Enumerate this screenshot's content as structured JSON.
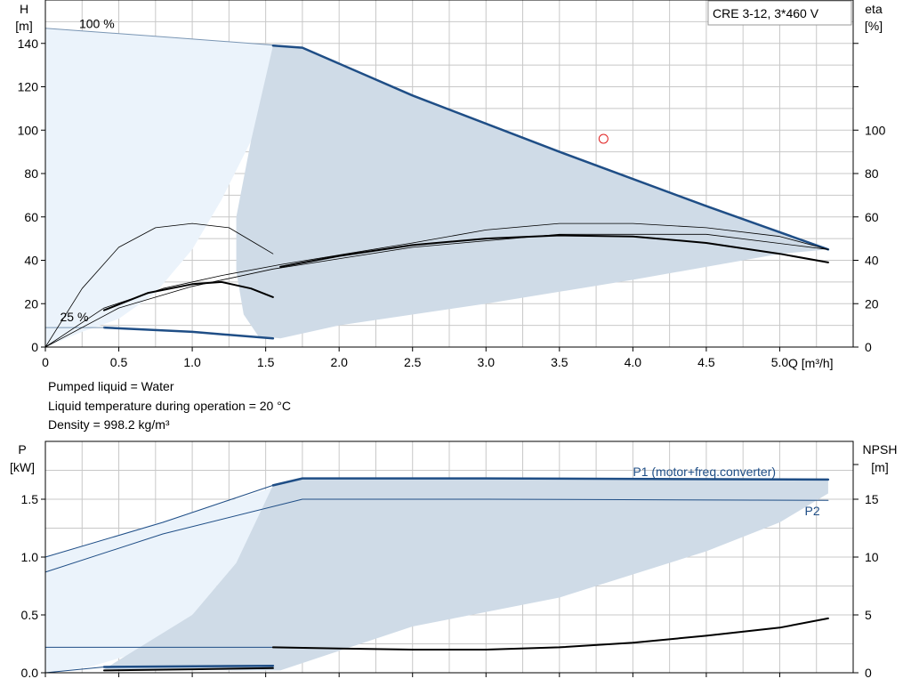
{
  "chart_data": [
    {
      "type": "line",
      "name_box": "CRE 3-12, 3*460 V",
      "y_left_label": [
        "H",
        "[m]"
      ],
      "y_right_label": [
        "eta",
        "[%]"
      ],
      "x_label": "Q [m³/h]",
      "xlim": [
        0,
        5.5
      ],
      "ylim": [
        0,
        160
      ],
      "x_ticks": [
        "0",
        "0.5",
        "1.0",
        "1.5",
        "2.0",
        "2.5",
        "3.0",
        "3.5",
        "4.0",
        "4.5",
        "5.0"
      ],
      "x_tick_values": [
        0,
        0.5,
        1.0,
        1.5,
        2.0,
        2.5,
        3.0,
        3.5,
        4.0,
        4.5,
        5.0
      ],
      "y_left_ticks": [
        "0",
        "20",
        "40",
        "60",
        "80",
        "100",
        "120",
        "140"
      ],
      "y_left_tick_values": [
        0,
        20,
        40,
        60,
        80,
        100,
        120,
        140
      ],
      "y_right_ticks": [
        "0",
        "20",
        "40",
        "60",
        "80",
        "100"
      ],
      "y_right_tick_values": [
        0,
        20,
        40,
        60,
        80,
        100
      ],
      "speed_labels": [
        {
          "text": "100 %",
          "x": 0.23,
          "y": 147
        },
        {
          "text": "25 %",
          "x": 0.1,
          "y": 12
        }
      ],
      "grid": true,
      "region_light": [
        [
          0,
          147
        ],
        [
          0.8,
          143
        ],
        [
          1.6,
          139
        ],
        [
          1.55,
          118
        ],
        [
          1.4,
          95
        ],
        [
          1.2,
          68
        ],
        [
          1.0,
          45
        ],
        [
          0.75,
          25
        ],
        [
          0.5,
          13
        ],
        [
          0.25,
          7
        ],
        [
          0,
          0
        ]
      ],
      "region_operating": [
        [
          1.55,
          139
        ],
        [
          1.75,
          138
        ],
        [
          2.5,
          116
        ],
        [
          3.5,
          90
        ],
        [
          4.5,
          65
        ],
        [
          5.33,
          45
        ],
        [
          5.0,
          43
        ],
        [
          4.0,
          31
        ],
        [
          3.0,
          20
        ],
        [
          2.0,
          10
        ],
        [
          1.6,
          4
        ],
        [
          1.45,
          5
        ],
        [
          1.35,
          15
        ],
        [
          1.3,
          35
        ],
        [
          1.3,
          60
        ],
        [
          1.4,
          95
        ],
        [
          1.55,
          139
        ]
      ],
      "series": [
        {
          "role": "max-curve-left",
          "color": "#7a96b4",
          "width": 1,
          "points": [
            [
              0,
              147
            ],
            [
              0.8,
              143
            ],
            [
              1.6,
              139
            ]
          ]
        },
        {
          "role": "max-curve",
          "color": "#1f4e86",
          "width": 2.5,
          "points": [
            [
              1.55,
              139
            ],
            [
              1.75,
              138
            ],
            [
              2.5,
              116
            ],
            [
              3.5,
              90
            ],
            [
              4.5,
              65
            ],
            [
              5.33,
              45
            ]
          ]
        },
        {
          "role": "min-curve",
          "color": "#1f4e86",
          "width": 2.5,
          "points": [
            [
              0.4,
              9
            ],
            [
              1.0,
              7
            ],
            [
              1.55,
              4
            ]
          ]
        },
        {
          "role": "min-curve-left",
          "color": "#7a96b4",
          "width": 1,
          "points": [
            [
              0,
              9
            ],
            [
              0.4,
              9
            ]
          ]
        },
        {
          "role": "eta-thin-1",
          "color": "#000000",
          "width": 0.8,
          "points": [
            [
              0,
              0
            ],
            [
              0.25,
              27
            ],
            [
              0.5,
              46
            ],
            [
              0.75,
              55
            ],
            [
              1.0,
              57
            ],
            [
              1.25,
              55
            ],
            [
              1.45,
              47
            ],
            [
              1.55,
              43
            ]
          ]
        },
        {
          "role": "eta-thin-2",
          "color": "#000000",
          "width": 0.8,
          "points": [
            [
              0,
              0
            ],
            [
              0.4,
              18
            ],
            [
              0.8,
              27
            ],
            [
              1.2,
              33
            ],
            [
              1.6,
              38
            ],
            [
              2.5,
              48
            ],
            [
              3.0,
              54
            ],
            [
              3.5,
              57
            ],
            [
              4.0,
              57
            ],
            [
              4.5,
              55
            ],
            [
              5.0,
              51
            ],
            [
              5.33,
              45
            ]
          ]
        },
        {
          "role": "eta-thin-3",
          "color": "#000000",
          "width": 0.8,
          "points": [
            [
              0,
              0
            ],
            [
              0.5,
              18
            ],
            [
              1.0,
              28
            ],
            [
              1.55,
              36
            ],
            [
              2.5,
              46
            ],
            [
              3.5,
              52
            ],
            [
              4.5,
              52
            ],
            [
              5.33,
              45
            ]
          ]
        },
        {
          "role": "eta-low",
          "color": "#000000",
          "width": 2,
          "points": [
            [
              0.4,
              17
            ],
            [
              0.7,
              25
            ],
            [
              1.0,
              29
            ],
            [
              1.2,
              30
            ],
            [
              1.4,
              27
            ],
            [
              1.55,
              23
            ]
          ]
        },
        {
          "role": "eta-main",
          "color": "#000000",
          "width": 2,
          "points": [
            [
              1.6,
              37
            ],
            [
              2.0,
              42
            ],
            [
              2.5,
              47
            ],
            [
              3.0,
              50
            ],
            [
              3.5,
              51.5
            ],
            [
              4.0,
              51
            ],
            [
              4.5,
              48
            ],
            [
              5.0,
              43
            ],
            [
              5.33,
              39
            ]
          ]
        }
      ],
      "marker": {
        "x": 3.8,
        "y": 96,
        "color": "#e02020"
      }
    },
    {
      "type": "line",
      "y_left_label": [
        "P",
        "[kW]"
      ],
      "y_right_label": [
        "NPSH",
        "[m]"
      ],
      "xlim": [
        0,
        5.5
      ],
      "ylim": [
        0,
        2.0
      ],
      "x_tick_values": [
        0,
        0.5,
        1.0,
        1.5,
        2.0,
        2.5,
        3.0,
        3.5,
        4.0,
        4.5,
        5.0
      ],
      "y_left_ticks": [
        "0.0",
        "0.5",
        "1.0",
        "1.5"
      ],
      "y_left_tick_values": [
        0,
        0.5,
        1.0,
        1.5
      ],
      "y_right_ticks": [
        "0",
        "5",
        "10",
        "15"
      ],
      "y_right_tick_values": [
        0,
        0.5,
        1.0,
        1.5
      ],
      "grid": true,
      "series_labels": [
        {
          "text": "P1 (motor+freq.converter)",
          "x": 4.0,
          "y": 1.7,
          "color": "#1f4e86"
        },
        {
          "text": "P2",
          "x": 5.17,
          "y": 1.36,
          "color": "#1f4e86"
        }
      ],
      "region_light": [
        [
          0,
          1.0
        ],
        [
          1.6,
          1.62
        ],
        [
          1.55,
          1.35
        ],
        [
          1.3,
          0.95
        ],
        [
          1.0,
          0.5
        ],
        [
          0.7,
          0.2
        ],
        [
          0.3,
          0.05
        ],
        [
          0,
          0.0
        ]
      ],
      "region_operating": [
        [
          1.55,
          1.62
        ],
        [
          1.75,
          1.68
        ],
        [
          3.0,
          1.68
        ],
        [
          5.33,
          1.67
        ],
        [
          5.33,
          1.55
        ],
        [
          5.0,
          1.3
        ],
        [
          4.5,
          1.05
        ],
        [
          4.0,
          0.85
        ],
        [
          3.5,
          0.65
        ],
        [
          2.5,
          0.4
        ],
        [
          1.6,
          0.02
        ],
        [
          1.3,
          0.02
        ],
        [
          1.0,
          0.03
        ],
        [
          0.4,
          0.03
        ],
        [
          1.0,
          0.5
        ],
        [
          1.3,
          0.95
        ],
        [
          1.55,
          1.62
        ]
      ],
      "series": [
        {
          "role": "P1-left",
          "color": "#1f4e86",
          "width": 1,
          "points": [
            [
              0,
              1.0
            ],
            [
              0.8,
              1.3
            ],
            [
              1.55,
              1.62
            ]
          ]
        },
        {
          "role": "P2-left",
          "color": "#1f4e86",
          "width": 1,
          "points": [
            [
              0,
              0.87
            ],
            [
              0.8,
              1.2
            ],
            [
              1.75,
              1.5
            ]
          ]
        },
        {
          "role": "P1",
          "color": "#1f4e86",
          "width": 2.5,
          "points": [
            [
              1.55,
              1.62
            ],
            [
              1.75,
              1.68
            ],
            [
              3.0,
              1.68
            ],
            [
              5.33,
              1.67
            ]
          ]
        },
        {
          "role": "P2",
          "color": "#1f4e86",
          "width": 1,
          "points": [
            [
              1.75,
              1.5
            ],
            [
              3.0,
              1.5
            ],
            [
              5.33,
              1.49
            ]
          ]
        },
        {
          "role": "P-min-1",
          "color": "#1f4e86",
          "width": 2.5,
          "points": [
            [
              0.4,
              0.05
            ],
            [
              1.55,
              0.06
            ]
          ]
        },
        {
          "role": "P-min-1-left",
          "color": "#1f4e86",
          "width": 1,
          "points": [
            [
              0,
              0.0
            ],
            [
              0.4,
              0.05
            ]
          ]
        },
        {
          "role": "P-min-2",
          "color": "#1f4e86",
          "width": 1,
          "points": [
            [
              0,
              0.22
            ],
            [
              1.55,
              0.22
            ]
          ]
        },
        {
          "role": "NPSH-low",
          "color": "#000000",
          "width": 2,
          "points": [
            [
              0.4,
              0.02
            ],
            [
              1.0,
              0.03
            ],
            [
              1.55,
              0.04
            ]
          ]
        },
        {
          "role": "NPSH",
          "color": "#000000",
          "width": 2,
          "points": [
            [
              1.55,
              0.22
            ],
            [
              2.0,
              0.21
            ],
            [
              2.5,
              0.2
            ],
            [
              3.0,
              0.2
            ],
            [
              3.5,
              0.22
            ],
            [
              4.0,
              0.26
            ],
            [
              4.5,
              0.32
            ],
            [
              5.0,
              0.39
            ],
            [
              5.33,
              0.47
            ]
          ]
        }
      ]
    }
  ],
  "notes": {
    "liquid": "Pumped liquid = Water",
    "temperature": "Liquid temperature during operation = 20 °C",
    "density": "Density = 998.2 kg/m³"
  }
}
